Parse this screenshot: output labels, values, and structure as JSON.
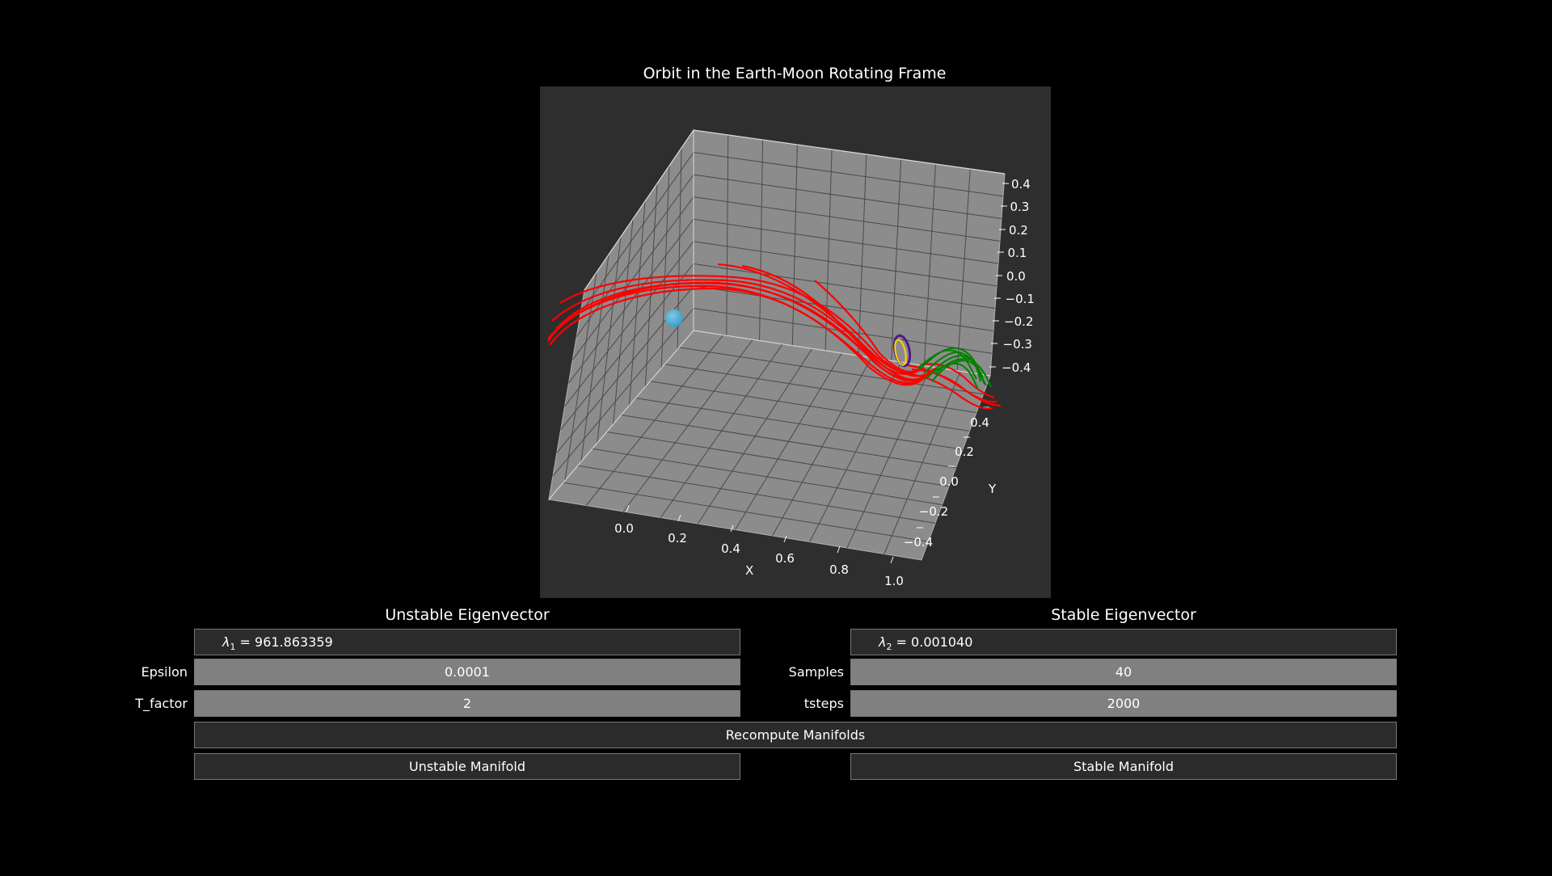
{
  "plot": {
    "title": "Orbit in the Earth-Moon Rotating Frame",
    "x_axis_label": "X",
    "y_axis_label": "Y",
    "x_ticks": [
      "0.0",
      "0.2",
      "0.4",
      "0.6",
      "0.8",
      "1.0"
    ],
    "y_ticks": [
      "0.4",
      "0.2",
      "0.0",
      "−0.2",
      "−0.4"
    ],
    "z_ticks": [
      "0.4",
      "0.3",
      "0.2",
      "0.1",
      "0.0",
      "−0.1",
      "−0.2",
      "−0.3",
      "−0.4"
    ],
    "colors": {
      "unstable_manifold": "#ff0000",
      "stable_manifold": "#008000",
      "earth": "#3a9cc4",
      "orbit_outer": "#4b1a8a",
      "orbit_inner": "#ffd400",
      "pane": "#8c8c8c",
      "background": "#2e2e2e"
    }
  },
  "unstable": {
    "title": "Unstable Eigenvector",
    "lambda_symbol": "λ",
    "lambda_sub": "1",
    "lambda_value": " = 961.863359",
    "epsilon_label": "Epsilon",
    "epsilon_value": "0.0001",
    "tfactor_label": "T_factor",
    "tfactor_value": "2",
    "manifold_button": "Unstable Manifold"
  },
  "stable": {
    "title": "Stable Eigenvector",
    "lambda_symbol": "λ",
    "lambda_sub": "2",
    "lambda_value": " = 0.001040",
    "samples_label": "Samples",
    "samples_value": "40",
    "tsteps_label": "tsteps",
    "tsteps_value": "2000",
    "manifold_button": "Stable Manifold"
  },
  "recompute_button": "Recompute Manifolds"
}
